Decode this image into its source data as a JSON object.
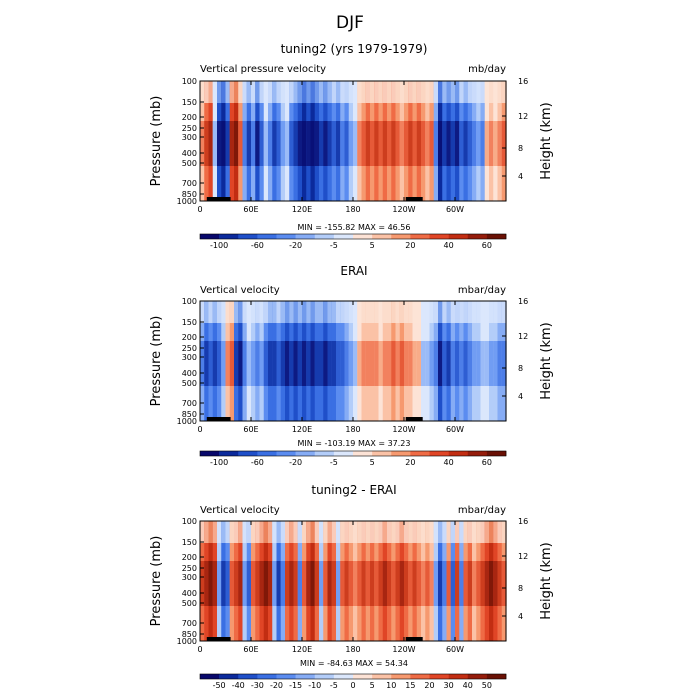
{
  "figure_title": "DJF",
  "chart_data": [
    {
      "type": "heatmap",
      "title": "tuning2 (yrs 1979-1979)",
      "left_label": "Vertical pressure velocity",
      "units": "mb/day",
      "ylabel": "Pressure (mb)",
      "ylabel_right": "Height (km)",
      "pressure_ticks": [
        "100",
        "150",
        "200",
        "250",
        "300",
        "400",
        "500",
        "700",
        "850",
        "1000"
      ],
      "height_ticks": [
        "16",
        "12",
        "8",
        "4"
      ],
      "lon_ticks": [
        "0",
        "60E",
        "120E",
        "180",
        "120W",
        "60W"
      ],
      "stats": "MIN = -155.82   MAX =  46.56",
      "colorbar_levels": [
        "-100",
        "-60",
        "-20",
        "-5",
        "5",
        "20",
        "40",
        "60"
      ],
      "palette": [
        "#08086b",
        "#0b2a9c",
        "#1f4fc9",
        "#3a6fe3",
        "#5b8cf0",
        "#86acf5",
        "#b3cdf9",
        "#dbe7fc",
        "#fde3d6",
        "#fbc2a6",
        "#f6996f",
        "#ef6b45",
        "#e04526",
        "#c22d12",
        "#951c0b",
        "#6a1105"
      ],
      "columns": [
        {
          "lon": 0,
          "cls": 9
        },
        {
          "lon": 5,
          "cls": 11
        },
        {
          "lon": 10,
          "cls": 12
        },
        {
          "lon": 15,
          "cls": 7
        },
        {
          "lon": 20,
          "cls": 2
        },
        {
          "lon": 25,
          "cls": 1
        },
        {
          "lon": 30,
          "cls": 3
        },
        {
          "lon": 35,
          "cls": 12
        },
        {
          "lon": 40,
          "cls": 13
        },
        {
          "lon": 45,
          "cls": 10
        },
        {
          "lon": 50,
          "cls": 5
        },
        {
          "lon": 55,
          "cls": 3
        },
        {
          "lon": 60,
          "cls": 5
        },
        {
          "lon": 65,
          "cls": 2
        },
        {
          "lon": 70,
          "cls": 4
        },
        {
          "lon": 75,
          "cls": 7
        },
        {
          "lon": 80,
          "cls": 5
        },
        {
          "lon": 85,
          "cls": 3
        },
        {
          "lon": 90,
          "cls": 4
        },
        {
          "lon": 95,
          "cls": 6
        },
        {
          "lon": 100,
          "cls": 7
        },
        {
          "lon": 105,
          "cls": 4
        },
        {
          "lon": 110,
          "cls": 3
        },
        {
          "lon": 115,
          "cls": 2
        },
        {
          "lon": 120,
          "cls": 1
        },
        {
          "lon": 125,
          "cls": 2
        },
        {
          "lon": 130,
          "cls": 1
        },
        {
          "lon": 135,
          "cls": 2
        },
        {
          "lon": 140,
          "cls": 3
        },
        {
          "lon": 145,
          "cls": 2
        },
        {
          "lon": 150,
          "cls": 3
        },
        {
          "lon": 155,
          "cls": 4
        },
        {
          "lon": 160,
          "cls": 3
        },
        {
          "lon": 165,
          "cls": 5
        },
        {
          "lon": 170,
          "cls": 4
        },
        {
          "lon": 175,
          "cls": 6
        },
        {
          "lon": 180,
          "cls": 7
        },
        {
          "lon": 185,
          "cls": 9
        },
        {
          "lon": 190,
          "cls": 10
        },
        {
          "lon": 195,
          "cls": 11
        },
        {
          "lon": 200,
          "cls": 10
        },
        {
          "lon": 205,
          "cls": 11
        },
        {
          "lon": 210,
          "cls": 10
        },
        {
          "lon": 215,
          "cls": 11
        },
        {
          "lon": 220,
          "cls": 10
        },
        {
          "lon": 225,
          "cls": 11
        },
        {
          "lon": 230,
          "cls": 10
        },
        {
          "lon": 235,
          "cls": 9
        },
        {
          "lon": 240,
          "cls": 10
        },
        {
          "lon": 245,
          "cls": 11
        },
        {
          "lon": 250,
          "cls": 10
        },
        {
          "lon": 255,
          "cls": 11
        },
        {
          "lon": 260,
          "cls": 10
        },
        {
          "lon": 265,
          "cls": 9
        },
        {
          "lon": 270,
          "cls": 10
        },
        {
          "lon": 275,
          "cls": 5
        },
        {
          "lon": 280,
          "cls": 1
        },
        {
          "lon": 285,
          "cls": 3
        },
        {
          "lon": 290,
          "cls": 2
        },
        {
          "lon": 295,
          "cls": 3
        },
        {
          "lon": 300,
          "cls": 2
        },
        {
          "lon": 305,
          "cls": 4
        },
        {
          "lon": 310,
          "cls": 3
        },
        {
          "lon": 315,
          "cls": 4
        },
        {
          "lon": 320,
          "cls": 5
        },
        {
          "lon": 325,
          "cls": 6
        },
        {
          "lon": 330,
          "cls": 5
        },
        {
          "lon": 335,
          "cls": 8
        },
        {
          "lon": 340,
          "cls": 9
        },
        {
          "lon": 345,
          "cls": 8
        },
        {
          "lon": 350,
          "cls": 9
        },
        {
          "lon": 355,
          "cls": 10
        }
      ]
    },
    {
      "type": "heatmap",
      "title": "ERAI",
      "left_label": "Vertical velocity",
      "units": "mbar/day",
      "ylabel": "Pressure (mb)",
      "ylabel_right": "Height (km)",
      "pressure_ticks": [
        "100",
        "150",
        "200",
        "250",
        "300",
        "400",
        "500",
        "700",
        "850",
        "1000"
      ],
      "height_ticks": [
        "16",
        "12",
        "8",
        "4"
      ],
      "lon_ticks": [
        "0",
        "60E",
        "120E",
        "180",
        "120W",
        "60W"
      ],
      "stats": "MIN = -103.19   MAX =  37.23",
      "colorbar_levels": [
        "-100",
        "-60",
        "-20",
        "-5",
        "5",
        "20",
        "40",
        "60"
      ],
      "palette": [
        "#08086b",
        "#0b2a9c",
        "#1f4fc9",
        "#3a6fe3",
        "#5b8cf0",
        "#86acf5",
        "#b3cdf9",
        "#dbe7fc",
        "#fde3d6",
        "#fbc2a6",
        "#f6996f",
        "#ef6b45",
        "#e04526",
        "#c22d12",
        "#951c0b",
        "#6a1105"
      ],
      "columns": [
        {
          "lon": 0,
          "cls": 5
        },
        {
          "lon": 5,
          "cls": 3
        },
        {
          "lon": 10,
          "cls": 4
        },
        {
          "lon": 15,
          "cls": 3
        },
        {
          "lon": 20,
          "cls": 4
        },
        {
          "lon": 25,
          "cls": 6
        },
        {
          "lon": 30,
          "cls": 9
        },
        {
          "lon": 35,
          "cls": 10
        },
        {
          "lon": 40,
          "cls": 3
        },
        {
          "lon": 45,
          "cls": 2
        },
        {
          "lon": 50,
          "cls": 5
        },
        {
          "lon": 55,
          "cls": 7
        },
        {
          "lon": 60,
          "cls": 6
        },
        {
          "lon": 65,
          "cls": 5
        },
        {
          "lon": 70,
          "cls": 6
        },
        {
          "lon": 75,
          "cls": 4
        },
        {
          "lon": 80,
          "cls": 3
        },
        {
          "lon": 85,
          "cls": 3
        },
        {
          "lon": 90,
          "cls": 4
        },
        {
          "lon": 95,
          "cls": 3
        },
        {
          "lon": 100,
          "cls": 2
        },
        {
          "lon": 105,
          "cls": 3
        },
        {
          "lon": 110,
          "cls": 2
        },
        {
          "lon": 115,
          "cls": 3
        },
        {
          "lon": 120,
          "cls": 2
        },
        {
          "lon": 125,
          "cls": 3
        },
        {
          "lon": 130,
          "cls": 2
        },
        {
          "lon": 135,
          "cls": 3
        },
        {
          "lon": 140,
          "cls": 3
        },
        {
          "lon": 145,
          "cls": 2
        },
        {
          "lon": 150,
          "cls": 3
        },
        {
          "lon": 155,
          "cls": 3
        },
        {
          "lon": 160,
          "cls": 4
        },
        {
          "lon": 165,
          "cls": 4
        },
        {
          "lon": 170,
          "cls": 5
        },
        {
          "lon": 175,
          "cls": 6
        },
        {
          "lon": 180,
          "cls": 7
        },
        {
          "lon": 185,
          "cls": 8
        },
        {
          "lon": 190,
          "cls": 9
        },
        {
          "lon": 195,
          "cls": 9
        },
        {
          "lon": 200,
          "cls": 9
        },
        {
          "lon": 205,
          "cls": 9
        },
        {
          "lon": 210,
          "cls": 8
        },
        {
          "lon": 215,
          "cls": 9
        },
        {
          "lon": 220,
          "cls": 9
        },
        {
          "lon": 225,
          "cls": 10
        },
        {
          "lon": 230,
          "cls": 9
        },
        {
          "lon": 235,
          "cls": 10
        },
        {
          "lon": 240,
          "cls": 9
        },
        {
          "lon": 245,
          "cls": 9
        },
        {
          "lon": 250,
          "cls": 8
        },
        {
          "lon": 255,
          "cls": 8
        },
        {
          "lon": 260,
          "cls": 7
        },
        {
          "lon": 265,
          "cls": 7
        },
        {
          "lon": 270,
          "cls": 6
        },
        {
          "lon": 275,
          "cls": 5
        },
        {
          "lon": 280,
          "cls": 2
        },
        {
          "lon": 285,
          "cls": 4
        },
        {
          "lon": 290,
          "cls": 3
        },
        {
          "lon": 295,
          "cls": 5
        },
        {
          "lon": 300,
          "cls": 4
        },
        {
          "lon": 305,
          "cls": 5
        },
        {
          "lon": 310,
          "cls": 4
        },
        {
          "lon": 315,
          "cls": 5
        },
        {
          "lon": 320,
          "cls": 6
        },
        {
          "lon": 325,
          "cls": 6
        },
        {
          "lon": 330,
          "cls": 7
        },
        {
          "lon": 335,
          "cls": 7
        },
        {
          "lon": 340,
          "cls": 6
        },
        {
          "lon": 345,
          "cls": 6
        },
        {
          "lon": 350,
          "cls": 5
        },
        {
          "lon": 355,
          "cls": 5
        }
      ]
    },
    {
      "type": "heatmap",
      "title": "tuning2 - ERAI",
      "left_label": "Vertical velocity",
      "units": "mbar/day",
      "ylabel": "Pressure (mb)",
      "ylabel_right": "Height (km)",
      "pressure_ticks": [
        "100",
        "150",
        "200",
        "250",
        "300",
        "400",
        "500",
        "700",
        "850",
        "1000"
      ],
      "height_ticks": [
        "16",
        "12",
        "8",
        "4"
      ],
      "lon_ticks": [
        "0",
        "60E",
        "120E",
        "180",
        "120W",
        "60W"
      ],
      "stats": "MIN = -84.63   MAX =  54.34",
      "colorbar_levels": [
        "-50",
        "-40",
        "-30",
        "-20",
        "-15",
        "-10",
        "-5",
        "0",
        "5",
        "10",
        "15",
        "20",
        "30",
        "40",
        "50"
      ],
      "palette": [
        "#08086b",
        "#0b2a9c",
        "#1f4fc9",
        "#3a6fe3",
        "#5b8cf0",
        "#86acf5",
        "#b3cdf9",
        "#dbe7fc",
        "#fde3d6",
        "#fbc2a6",
        "#f6996f",
        "#ef6b45",
        "#e04526",
        "#c22d12",
        "#951c0b",
        "#6a1105"
      ],
      "columns": [
        {
          "lon": 0,
          "cls": 11
        },
        {
          "lon": 5,
          "cls": 12
        },
        {
          "lon": 10,
          "cls": 13
        },
        {
          "lon": 15,
          "cls": 12
        },
        {
          "lon": 20,
          "cls": 6
        },
        {
          "lon": 25,
          "cls": 3
        },
        {
          "lon": 30,
          "cls": 4
        },
        {
          "lon": 35,
          "cls": 10
        },
        {
          "lon": 40,
          "cls": 11
        },
        {
          "lon": 45,
          "cls": 12
        },
        {
          "lon": 50,
          "cls": 6
        },
        {
          "lon": 55,
          "cls": 4
        },
        {
          "lon": 60,
          "cls": 10
        },
        {
          "lon": 65,
          "cls": 11
        },
        {
          "lon": 70,
          "cls": 12
        },
        {
          "lon": 75,
          "cls": 13
        },
        {
          "lon": 80,
          "cls": 12
        },
        {
          "lon": 85,
          "cls": 6
        },
        {
          "lon": 90,
          "cls": 3
        },
        {
          "lon": 95,
          "cls": 5
        },
        {
          "lon": 100,
          "cls": 11
        },
        {
          "lon": 105,
          "cls": 12
        },
        {
          "lon": 110,
          "cls": 11
        },
        {
          "lon": 115,
          "cls": 5
        },
        {
          "lon": 120,
          "cls": 10
        },
        {
          "lon": 125,
          "cls": 12
        },
        {
          "lon": 130,
          "cls": 13
        },
        {
          "lon": 135,
          "cls": 11
        },
        {
          "lon": 140,
          "cls": 6
        },
        {
          "lon": 145,
          "cls": 10
        },
        {
          "lon": 150,
          "cls": 12
        },
        {
          "lon": 155,
          "cls": 11
        },
        {
          "lon": 160,
          "cls": 6
        },
        {
          "lon": 165,
          "cls": 10
        },
        {
          "lon": 170,
          "cls": 11
        },
        {
          "lon": 175,
          "cls": 10
        },
        {
          "lon": 180,
          "cls": 9
        },
        {
          "lon": 185,
          "cls": 10
        },
        {
          "lon": 190,
          "cls": 11
        },
        {
          "lon": 195,
          "cls": 10
        },
        {
          "lon": 200,
          "cls": 11
        },
        {
          "lon": 205,
          "cls": 10
        },
        {
          "lon": 210,
          "cls": 11
        },
        {
          "lon": 215,
          "cls": 12
        },
        {
          "lon": 220,
          "cls": 11
        },
        {
          "lon": 225,
          "cls": 10
        },
        {
          "lon": 230,
          "cls": 11
        },
        {
          "lon": 235,
          "cls": 12
        },
        {
          "lon": 240,
          "cls": 11
        },
        {
          "lon": 245,
          "cls": 10
        },
        {
          "lon": 250,
          "cls": 11
        },
        {
          "lon": 255,
          "cls": 10
        },
        {
          "lon": 260,
          "cls": 9
        },
        {
          "lon": 265,
          "cls": 10
        },
        {
          "lon": 270,
          "cls": 9
        },
        {
          "lon": 275,
          "cls": 6
        },
        {
          "lon": 280,
          "cls": 3
        },
        {
          "lon": 285,
          "cls": 5
        },
        {
          "lon": 290,
          "cls": 10
        },
        {
          "lon": 295,
          "cls": 4
        },
        {
          "lon": 300,
          "cls": 11
        },
        {
          "lon": 305,
          "cls": 5
        },
        {
          "lon": 310,
          "cls": 10
        },
        {
          "lon": 315,
          "cls": 11
        },
        {
          "lon": 320,
          "cls": 9
        },
        {
          "lon": 325,
          "cls": 10
        },
        {
          "lon": 330,
          "cls": 11
        },
        {
          "lon": 335,
          "cls": 12
        },
        {
          "lon": 340,
          "cls": 13
        },
        {
          "lon": 345,
          "cls": 12
        },
        {
          "lon": 350,
          "cls": 11
        },
        {
          "lon": 355,
          "cls": 10
        }
      ]
    }
  ]
}
